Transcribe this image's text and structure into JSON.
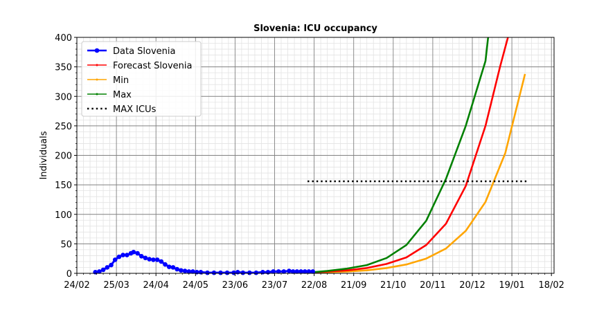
{
  "chart_data": {
    "type": "line",
    "title": "Slovenia: ICU occupancy",
    "xlabel": "",
    "ylabel": "Individuals",
    "x_axis": {
      "type": "date",
      "year": 2020,
      "range": [
        "2020-02-24",
        "2021-02-20"
      ],
      "tick_labels": [
        "24/02",
        "25/03",
        "24/04",
        "24/05",
        "23/06",
        "23/07",
        "22/08",
        "21/09",
        "21/10",
        "20/11",
        "20/12",
        "19/01",
        "18/02"
      ],
      "tick_dates": [
        "2020-02-24",
        "2020-03-25",
        "2020-04-24",
        "2020-05-24",
        "2020-06-23",
        "2020-07-23",
        "2020-08-22",
        "2020-09-21",
        "2020-10-21",
        "2020-11-20",
        "2020-12-20",
        "2021-01-19",
        "2021-02-18"
      ]
    },
    "ylim": [
      0,
      400
    ],
    "yticks": [
      0,
      50,
      100,
      150,
      200,
      250,
      300,
      350,
      400
    ],
    "grid": {
      "major": true,
      "minor": true
    },
    "legend": {
      "position": "top-left",
      "entries": [
        {
          "label": "Data Slovenia",
          "color": "#0000ff",
          "style": "line-marker"
        },
        {
          "label": "Forecast Slovenia",
          "color": "#ff0000",
          "style": "line-small-marker"
        },
        {
          "label": "Min",
          "color": "#ffa500",
          "style": "line-small-marker"
        },
        {
          "label": "Max",
          "color": "#008000",
          "style": "line-small-marker"
        },
        {
          "label": "MAX ICUs",
          "color": "#000000",
          "style": "dotted"
        }
      ]
    },
    "series": [
      {
        "name": "Data Slovenia",
        "color": "#0000ff",
        "points": [
          [
            "2020-03-09",
            2
          ],
          [
            "2020-03-12",
            3
          ],
          [
            "2020-03-15",
            6
          ],
          [
            "2020-03-18",
            10
          ],
          [
            "2020-03-21",
            14
          ],
          [
            "2020-03-24",
            23
          ],
          [
            "2020-03-27",
            28
          ],
          [
            "2020-03-30",
            31
          ],
          [
            "2020-04-02",
            31
          ],
          [
            "2020-04-05",
            34
          ],
          [
            "2020-04-07",
            36
          ],
          [
            "2020-04-10",
            34
          ],
          [
            "2020-04-13",
            29
          ],
          [
            "2020-04-16",
            26
          ],
          [
            "2020-04-19",
            24
          ],
          [
            "2020-04-22",
            23
          ],
          [
            "2020-04-25",
            23
          ],
          [
            "2020-04-28",
            20
          ],
          [
            "2020-05-01",
            15
          ],
          [
            "2020-05-04",
            11
          ],
          [
            "2020-05-07",
            10
          ],
          [
            "2020-05-10",
            7
          ],
          [
            "2020-05-13",
            5
          ],
          [
            "2020-05-16",
            4
          ],
          [
            "2020-05-19",
            3
          ],
          [
            "2020-05-22",
            3
          ],
          [
            "2020-05-25",
            2
          ],
          [
            "2020-05-28",
            2
          ],
          [
            "2020-06-02",
            1
          ],
          [
            "2020-06-07",
            1
          ],
          [
            "2020-06-12",
            1
          ],
          [
            "2020-06-17",
            1
          ],
          [
            "2020-06-22",
            1
          ],
          [
            "2020-06-25",
            2
          ],
          [
            "2020-06-29",
            1
          ],
          [
            "2020-07-04",
            1
          ],
          [
            "2020-07-09",
            1
          ],
          [
            "2020-07-14",
            2
          ],
          [
            "2020-07-18",
            2
          ],
          [
            "2020-07-22",
            3
          ],
          [
            "2020-07-26",
            3
          ],
          [
            "2020-07-30",
            3
          ],
          [
            "2020-08-03",
            4
          ],
          [
            "2020-08-06",
            3
          ],
          [
            "2020-08-09",
            3
          ],
          [
            "2020-08-12",
            3
          ],
          [
            "2020-08-15",
            3
          ],
          [
            "2020-08-18",
            3
          ],
          [
            "2020-08-21",
            3
          ]
        ]
      },
      {
        "name": "Forecast Slovenia",
        "color": "#ff0000",
        "points": [
          [
            "2020-08-17",
            1
          ],
          [
            "2020-09-01",
            3
          ],
          [
            "2020-09-16",
            5
          ],
          [
            "2020-10-01",
            9
          ],
          [
            "2020-10-16",
            16
          ],
          [
            "2020-10-31",
            27
          ],
          [
            "2020-11-15",
            48
          ],
          [
            "2020-11-30",
            84
          ],
          [
            "2020-12-15",
            148
          ],
          [
            "2020-12-30",
            250
          ],
          [
            "2021-01-10",
            350
          ],
          [
            "2021-01-16",
            400
          ]
        ]
      },
      {
        "name": "Min",
        "color": "#ffa500",
        "points": [
          [
            "2020-08-17",
            1
          ],
          [
            "2020-09-01",
            2
          ],
          [
            "2020-09-16",
            3
          ],
          [
            "2020-10-01",
            5
          ],
          [
            "2020-10-16",
            9
          ],
          [
            "2020-10-31",
            15
          ],
          [
            "2020-11-15",
            25
          ],
          [
            "2020-11-30",
            42
          ],
          [
            "2020-12-15",
            72
          ],
          [
            "2020-12-30",
            121
          ],
          [
            "2021-01-14",
            204
          ],
          [
            "2021-01-29",
            338
          ]
        ]
      },
      {
        "name": "Max",
        "color": "#008000",
        "points": [
          [
            "2020-08-17",
            1
          ],
          [
            "2020-09-01",
            4
          ],
          [
            "2020-09-16",
            8
          ],
          [
            "2020-10-01",
            14
          ],
          [
            "2020-10-16",
            26
          ],
          [
            "2020-10-31",
            48
          ],
          [
            "2020-11-15",
            89
          ],
          [
            "2020-11-30",
            160
          ],
          [
            "2020-12-15",
            250
          ],
          [
            "2020-12-30",
            360
          ],
          [
            "2021-01-01",
            400
          ]
        ]
      },
      {
        "name": "MAX ICUs",
        "color": "#000000",
        "points": [
          [
            "2020-08-17",
            156
          ],
          [
            "2021-01-31",
            156
          ]
        ]
      }
    ]
  }
}
